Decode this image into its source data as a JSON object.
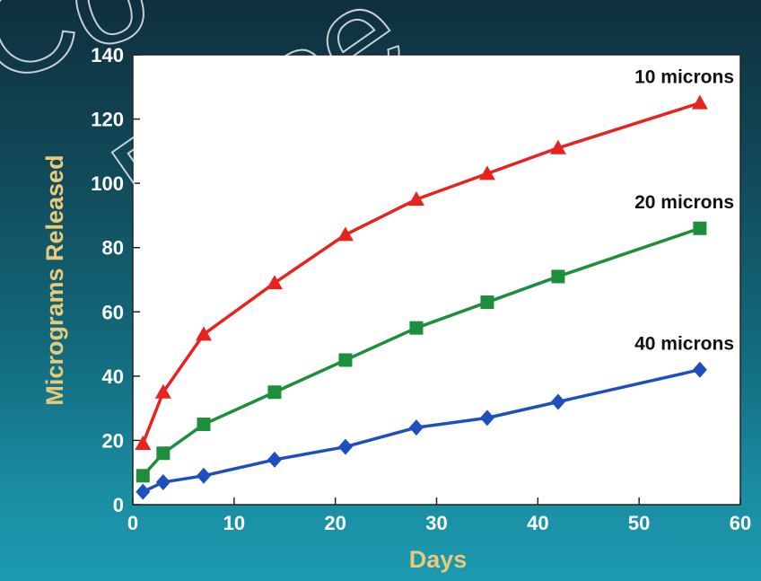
{
  "chart_data": {
    "type": "line",
    "title": "",
    "xlabel": "Days",
    "ylabel": "Micrograms Released",
    "xlim": [
      0,
      60
    ],
    "ylim": [
      0,
      140
    ],
    "xticks": [
      0,
      10,
      20,
      30,
      40,
      50,
      60
    ],
    "yticks": [
      0,
      20,
      40,
      60,
      80,
      100,
      120,
      140
    ],
    "grid": false,
    "legend": "inline labels at right end of each line",
    "series": [
      {
        "name": "10 microns",
        "color": "#e8231f",
        "marker": "triangle",
        "x": [
          1,
          3,
          7,
          14,
          21,
          28,
          35,
          42,
          56
        ],
        "y": [
          19,
          35,
          53,
          69,
          84,
          95,
          103,
          111,
          125
        ]
      },
      {
        "name": "20 microns",
        "color": "#1d8f3c",
        "marker": "square",
        "x": [
          1,
          3,
          7,
          14,
          21,
          28,
          35,
          42,
          56
        ],
        "y": [
          9,
          16,
          25,
          35,
          45,
          55,
          63,
          71,
          86
        ]
      },
      {
        "name": "40 microns",
        "color": "#1f4fbf",
        "marker": "diamond",
        "x": [
          1,
          3,
          7,
          14,
          21,
          28,
          35,
          42,
          56
        ],
        "y": [
          4,
          7,
          9,
          14,
          18,
          24,
          27,
          32,
          42
        ]
      }
    ]
  },
  "watermark": {
    "line1": "Co",
    "line2": "Rese"
  }
}
